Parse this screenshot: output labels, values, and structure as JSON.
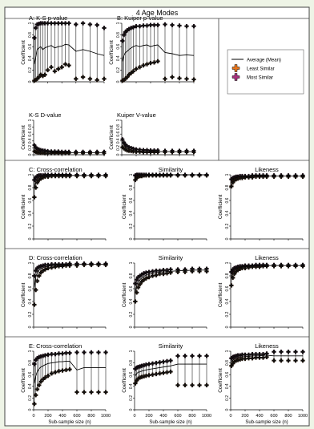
{
  "figure_title": "4 Age Modes",
  "y_axis_label": "Coefficient",
  "x_axis_label": "Sub-sample size (n)",
  "legend": {
    "mean": "Average (Mean)",
    "least": "Least Similar",
    "most": "Most Similar",
    "colors": {
      "mean": "#000000",
      "least": "#e8761c",
      "most": "#a8327e"
    }
  },
  "y_ticks": [
    "0",
    "0.2",
    "0.4",
    "0.6",
    "0.8",
    "1"
  ],
  "x_ticks": [
    "0",
    "200",
    "400",
    "600",
    "800",
    "1000"
  ],
  "chart_data": [
    {
      "panel": "A1",
      "title": "A: K-S p-value",
      "type": "line",
      "xlim": [
        0,
        1000
      ],
      "ylim": [
        0,
        1
      ],
      "x": [
        10,
        30,
        50,
        75,
        100,
        130,
        160,
        200,
        250,
        300,
        350,
        400,
        450,
        500,
        600,
        700,
        800,
        900,
        1000
      ],
      "mean": [
        0.3,
        0.42,
        0.55,
        0.58,
        0.6,
        0.55,
        0.58,
        0.6,
        0.62,
        0.58,
        0.6,
        0.61,
        0.64,
        0.63,
        0.52,
        0.55,
        0.52,
        0.48,
        0.45
      ],
      "upper": [
        0.75,
        0.92,
        0.98,
        0.99,
        1.0,
        1.0,
        1.0,
        1.0,
        1.0,
        1.0,
        1.0,
        1.0,
        1.0,
        1.0,
        0.98,
        1.0,
        0.98,
        0.97,
        0.92
      ],
      "lower": [
        0.02,
        0.03,
        0.05,
        0.08,
        0.12,
        0.1,
        0.12,
        0.2,
        0.25,
        0.18,
        0.22,
        0.25,
        0.3,
        0.28,
        0.05,
        0.08,
        0.05,
        0.03,
        0.05
      ]
    },
    {
      "panel": "A2",
      "title": "B: Kuiper p-value",
      "type": "line",
      "xlim": [
        0,
        1000
      ],
      "ylim": [
        0,
        1
      ],
      "x": [
        10,
        30,
        50,
        75,
        100,
        130,
        160,
        200,
        250,
        300,
        350,
        400,
        450,
        500,
        600,
        700,
        800,
        900,
        1000
      ],
      "mean": [
        0.35,
        0.45,
        0.5,
        0.52,
        0.55,
        0.58,
        0.6,
        0.62,
        0.6,
        0.62,
        0.63,
        0.6,
        0.62,
        0.63,
        0.5,
        0.48,
        0.45,
        0.46,
        0.45
      ],
      "upper": [
        0.7,
        0.8,
        0.85,
        0.88,
        0.9,
        0.92,
        0.93,
        0.95,
        0.95,
        0.96,
        0.96,
        0.97,
        0.97,
        0.97,
        0.98,
        0.97,
        0.96,
        0.95,
        0.95
      ],
      "lower": [
        0.02,
        0.03,
        0.05,
        0.08,
        0.12,
        0.15,
        0.18,
        0.22,
        0.25,
        0.28,
        0.3,
        0.32,
        0.33,
        0.35,
        0.05,
        0.08,
        0.06,
        0.05,
        0.04
      ]
    },
    {
      "panel": "A3",
      "title": "K-S D-value",
      "type": "line",
      "xlim": [
        0,
        1000
      ],
      "ylim": [
        0,
        1
      ],
      "x": [
        10,
        30,
        50,
        75,
        100,
        130,
        160,
        200,
        250,
        300,
        350,
        400,
        450,
        500,
        600,
        700,
        800,
        900,
        1000
      ],
      "mean": [
        0.2,
        0.16,
        0.13,
        0.11,
        0.1,
        0.09,
        0.08,
        0.08,
        0.07,
        0.07,
        0.07,
        0.06,
        0.06,
        0.06,
        0.06,
        0.06,
        0.06,
        0.06,
        0.06
      ],
      "upper": [
        0.28,
        0.22,
        0.18,
        0.16,
        0.14,
        0.13,
        0.12,
        0.11,
        0.1,
        0.1,
        0.1,
        0.09,
        0.09,
        0.09,
        0.09,
        0.09,
        0.09,
        0.09,
        0.09
      ],
      "lower": [
        0.1,
        0.08,
        0.07,
        0.06,
        0.05,
        0.05,
        0.04,
        0.04,
        0.04,
        0.04,
        0.04,
        0.04,
        0.04,
        0.04,
        0.04,
        0.04,
        0.04,
        0.04,
        0.04
      ]
    },
    {
      "panel": "A4",
      "title": "Kuiper V-value",
      "type": "line",
      "xlim": [
        0,
        1000
      ],
      "ylim": [
        0,
        1
      ],
      "x": [
        10,
        30,
        50,
        75,
        100,
        130,
        160,
        200,
        250,
        300,
        350,
        400,
        450,
        500,
        600,
        700,
        800,
        900,
        1000
      ],
      "mean": [
        0.35,
        0.28,
        0.22,
        0.18,
        0.16,
        0.14,
        0.13,
        0.12,
        0.11,
        0.1,
        0.1,
        0.1,
        0.1,
        0.09,
        0.09,
        0.09,
        0.09,
        0.09,
        0.09
      ],
      "upper": [
        0.45,
        0.36,
        0.3,
        0.25,
        0.22,
        0.2,
        0.18,
        0.16,
        0.15,
        0.14,
        0.14,
        0.13,
        0.13,
        0.13,
        0.12,
        0.12,
        0.12,
        0.12,
        0.12
      ],
      "lower": [
        0.22,
        0.18,
        0.15,
        0.12,
        0.11,
        0.1,
        0.09,
        0.08,
        0.08,
        0.07,
        0.07,
        0.07,
        0.07,
        0.07,
        0.07,
        0.07,
        0.07,
        0.07,
        0.07
      ]
    },
    {
      "panel": "C1",
      "title": "C: Cross-correlation",
      "type": "line",
      "xlim": [
        0,
        1000
      ],
      "ylim": [
        0,
        1
      ],
      "x": [
        10,
        30,
        50,
        75,
        100,
        130,
        160,
        200,
        250,
        300,
        350,
        400,
        450,
        500,
        600,
        700,
        800,
        900,
        1000
      ],
      "mean": [
        0.8,
        0.9,
        0.94,
        0.96,
        0.97,
        0.98,
        0.98,
        0.99,
        0.99,
        0.99,
        0.99,
        0.99,
        0.99,
        0.99,
        0.99,
        0.99,
        0.99,
        0.99,
        0.99
      ],
      "upper": [
        0.92,
        0.96,
        0.98,
        0.99,
        0.99,
        0.99,
        1.0,
        1.0,
        1.0,
        1.0,
        1.0,
        1.0,
        1.0,
        1.0,
        1.0,
        1.0,
        1.0,
        1.0,
        1.0
      ],
      "lower": [
        0.65,
        0.8,
        0.88,
        0.92,
        0.94,
        0.96,
        0.97,
        0.97,
        0.98,
        0.98,
        0.98,
        0.98,
        0.98,
        0.98,
        0.98,
        0.98,
        0.98,
        0.98,
        0.98
      ]
    },
    {
      "panel": "C2",
      "title": "Similarity",
      "type": "line",
      "xlim": [
        0,
        1000
      ],
      "ylim": [
        0,
        1
      ],
      "x": [
        10,
        30,
        50,
        75,
        100,
        130,
        160,
        200,
        250,
        300,
        350,
        400,
        450,
        500,
        600,
        700,
        800,
        900,
        1000
      ],
      "mean": [
        0.96,
        0.98,
        0.99,
        0.99,
        0.99,
        0.99,
        1.0,
        1.0,
        1.0,
        1.0,
        1.0,
        1.0,
        1.0,
        1.0,
        1.0,
        1.0,
        1.0,
        1.0,
        1.0
      ],
      "upper": [
        0.99,
        1.0,
        1.0,
        1.0,
        1.0,
        1.0,
        1.0,
        1.0,
        1.0,
        1.0,
        1.0,
        1.0,
        1.0,
        1.0,
        1.0,
        1.0,
        1.0,
        1.0,
        1.0
      ],
      "lower": [
        0.92,
        0.95,
        0.97,
        0.98,
        0.98,
        0.99,
        0.99,
        0.99,
        0.99,
        0.99,
        0.99,
        0.99,
        0.99,
        0.99,
        0.99,
        0.99,
        0.99,
        0.99,
        0.99
      ]
    },
    {
      "panel": "C3",
      "title": "Likeness",
      "type": "line",
      "xlim": [
        0,
        1000
      ],
      "ylim": [
        0,
        1
      ],
      "x": [
        10,
        30,
        50,
        75,
        100,
        130,
        160,
        200,
        250,
        300,
        350,
        400,
        450,
        500,
        600,
        700,
        800,
        900,
        1000
      ],
      "mean": [
        0.88,
        0.92,
        0.94,
        0.95,
        0.96,
        0.96,
        0.97,
        0.97,
        0.97,
        0.98,
        0.98,
        0.98,
        0.98,
        0.98,
        0.98,
        0.98,
        0.98,
        0.98,
        0.98
      ],
      "upper": [
        0.93,
        0.95,
        0.96,
        0.97,
        0.97,
        0.98,
        0.98,
        0.98,
        0.98,
        0.99,
        0.99,
        0.99,
        0.99,
        0.99,
        0.99,
        0.99,
        0.99,
        0.99,
        0.99
      ],
      "lower": [
        0.82,
        0.88,
        0.91,
        0.93,
        0.94,
        0.95,
        0.95,
        0.96,
        0.96,
        0.96,
        0.97,
        0.97,
        0.97,
        0.97,
        0.97,
        0.97,
        0.97,
        0.97,
        0.97
      ]
    },
    {
      "panel": "D1",
      "title": "D: Cross-correlation",
      "type": "line",
      "xlim": [
        0,
        1000
      ],
      "ylim": [
        0,
        1
      ],
      "x": [
        10,
        30,
        50,
        75,
        100,
        130,
        160,
        200,
        250,
        300,
        350,
        400,
        450,
        500,
        600,
        700,
        800,
        900,
        1000
      ],
      "mean": [
        0.62,
        0.78,
        0.85,
        0.89,
        0.91,
        0.93,
        0.94,
        0.95,
        0.96,
        0.96,
        0.97,
        0.97,
        0.97,
        0.97,
        0.98,
        0.98,
        0.98,
        0.98,
        0.98
      ],
      "upper": [
        0.8,
        0.88,
        0.92,
        0.94,
        0.95,
        0.96,
        0.97,
        0.97,
        0.98,
        0.98,
        0.98,
        0.98,
        0.98,
        0.99,
        0.99,
        0.99,
        0.99,
        0.99,
        0.99
      ],
      "lower": [
        0.35,
        0.58,
        0.72,
        0.8,
        0.85,
        0.88,
        0.9,
        0.92,
        0.93,
        0.94,
        0.95,
        0.95,
        0.96,
        0.96,
        0.96,
        0.97,
        0.97,
        0.97,
        0.97
      ]
    },
    {
      "panel": "D2",
      "title": "Similarity",
      "type": "line",
      "xlim": [
        0,
        1000
      ],
      "ylim": [
        0,
        1
      ],
      "x": [
        10,
        30,
        50,
        75,
        100,
        130,
        160,
        200,
        250,
        300,
        350,
        400,
        450,
        500,
        600,
        700,
        800,
        900,
        1000
      ],
      "mean": [
        0.55,
        0.65,
        0.71,
        0.74,
        0.77,
        0.79,
        0.81,
        0.82,
        0.84,
        0.85,
        0.86,
        0.86,
        0.87,
        0.87,
        0.88,
        0.88,
        0.89,
        0.89,
        0.89
      ],
      "upper": [
        0.68,
        0.74,
        0.78,
        0.8,
        0.82,
        0.84,
        0.85,
        0.86,
        0.87,
        0.88,
        0.88,
        0.89,
        0.89,
        0.9,
        0.9,
        0.9,
        0.91,
        0.91,
        0.91
      ],
      "lower": [
        0.4,
        0.54,
        0.62,
        0.67,
        0.71,
        0.74,
        0.76,
        0.78,
        0.8,
        0.81,
        0.83,
        0.83,
        0.84,
        0.85,
        0.86,
        0.86,
        0.87,
        0.87,
        0.87
      ]
    },
    {
      "panel": "D3",
      "title": "Likeness",
      "type": "line",
      "xlim": [
        0,
        1000
      ],
      "ylim": [
        0,
        1
      ],
      "x": [
        10,
        30,
        50,
        75,
        100,
        130,
        160,
        200,
        250,
        300,
        350,
        400,
        450,
        500,
        600,
        700,
        800,
        900,
        1000
      ],
      "mean": [
        0.78,
        0.85,
        0.89,
        0.91,
        0.92,
        0.93,
        0.94,
        0.94,
        0.95,
        0.95,
        0.95,
        0.96,
        0.96,
        0.96,
        0.96,
        0.96,
        0.96,
        0.96,
        0.96
      ],
      "upper": [
        0.86,
        0.9,
        0.92,
        0.93,
        0.94,
        0.95,
        0.95,
        0.96,
        0.96,
        0.96,
        0.97,
        0.97,
        0.97,
        0.97,
        0.97,
        0.97,
        0.97,
        0.97,
        0.97
      ],
      "lower": [
        0.65,
        0.77,
        0.83,
        0.87,
        0.89,
        0.91,
        0.92,
        0.92,
        0.93,
        0.94,
        0.94,
        0.94,
        0.95,
        0.95,
        0.95,
        0.95,
        0.95,
        0.95,
        0.95
      ]
    },
    {
      "panel": "E1",
      "title": "E: Cross-correlation",
      "type": "line",
      "xlim": [
        0,
        1000
      ],
      "ylim": [
        0,
        1
      ],
      "x": [
        10,
        30,
        50,
        75,
        100,
        130,
        160,
        200,
        250,
        300,
        350,
        400,
        450,
        500,
        600,
        700,
        800,
        900,
        1000
      ],
      "mean": [
        0.45,
        0.58,
        0.65,
        0.7,
        0.73,
        0.75,
        0.77,
        0.79,
        0.8,
        0.81,
        0.82,
        0.82,
        0.83,
        0.83,
        0.68,
        0.72,
        0.72,
        0.72,
        0.72
      ],
      "upper": [
        0.78,
        0.85,
        0.88,
        0.9,
        0.91,
        0.92,
        0.93,
        0.94,
        0.95,
        0.95,
        0.96,
        0.96,
        0.97,
        0.97,
        0.98,
        0.98,
        0.98,
        0.98,
        0.98
      ],
      "lower": [
        0.1,
        0.25,
        0.35,
        0.42,
        0.48,
        0.52,
        0.55,
        0.58,
        0.62,
        0.64,
        0.66,
        0.67,
        0.68,
        0.69,
        0.3,
        0.3,
        0.3,
        0.3,
        0.3
      ]
    },
    {
      "panel": "E2",
      "title": "Similarity",
      "type": "line",
      "xlim": [
        0,
        1000
      ],
      "ylim": [
        0,
        1
      ],
      "x": [
        10,
        30,
        50,
        75,
        100,
        130,
        160,
        200,
        250,
        300,
        350,
        400,
        450,
        500,
        600,
        700,
        800,
        900,
        1000
      ],
      "mean": [
        0.58,
        0.62,
        0.64,
        0.65,
        0.66,
        0.67,
        0.68,
        0.69,
        0.7,
        0.71,
        0.72,
        0.73,
        0.74,
        0.75,
        0.78,
        0.78,
        0.78,
        0.78,
        0.78
      ],
      "upper": [
        0.7,
        0.72,
        0.73,
        0.74,
        0.75,
        0.76,
        0.77,
        0.78,
        0.79,
        0.8,
        0.81,
        0.82,
        0.83,
        0.84,
        0.92,
        0.92,
        0.92,
        0.92,
        0.92
      ],
      "lower": [
        0.45,
        0.5,
        0.53,
        0.55,
        0.56,
        0.57,
        0.58,
        0.59,
        0.6,
        0.61,
        0.62,
        0.63,
        0.64,
        0.65,
        0.42,
        0.42,
        0.42,
        0.42,
        0.42
      ]
    },
    {
      "panel": "E3",
      "title": "Likeness",
      "type": "line",
      "xlim": [
        0,
        1000
      ],
      "ylim": [
        0,
        1
      ],
      "x": [
        10,
        30,
        50,
        75,
        100,
        130,
        160,
        200,
        250,
        300,
        350,
        400,
        450,
        500,
        600,
        700,
        800,
        900,
        1000
      ],
      "mean": [
        0.82,
        0.85,
        0.87,
        0.88,
        0.89,
        0.9,
        0.9,
        0.91,
        0.91,
        0.92,
        0.92,
        0.92,
        0.93,
        0.93,
        0.92,
        0.92,
        0.92,
        0.92,
        0.92
      ],
      "upper": [
        0.88,
        0.9,
        0.91,
        0.92,
        0.93,
        0.93,
        0.94,
        0.94,
        0.94,
        0.95,
        0.95,
        0.95,
        0.95,
        0.96,
        0.99,
        0.99,
        0.99,
        0.99,
        0.99
      ],
      "lower": [
        0.75,
        0.79,
        0.82,
        0.84,
        0.85,
        0.86,
        0.87,
        0.87,
        0.88,
        0.88,
        0.89,
        0.89,
        0.89,
        0.9,
        0.84,
        0.84,
        0.84,
        0.84,
        0.84
      ]
    }
  ]
}
